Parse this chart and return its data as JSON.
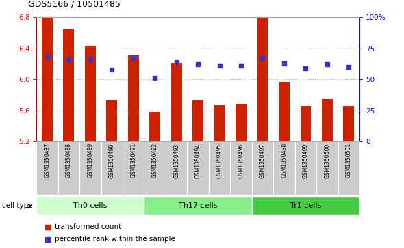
{
  "title": "GDS5166 / 10501485",
  "samples": [
    "GSM1350487",
    "GSM1350488",
    "GSM1350489",
    "GSM1350490",
    "GSM1350491",
    "GSM1350492",
    "GSM1350493",
    "GSM1350494",
    "GSM1350495",
    "GSM1350496",
    "GSM1350497",
    "GSM1350498",
    "GSM1350499",
    "GSM1350500",
    "GSM1350501"
  ],
  "bar_values": [
    6.8,
    6.65,
    6.43,
    5.73,
    6.31,
    5.58,
    6.21,
    5.73,
    5.67,
    5.68,
    6.8,
    5.97,
    5.66,
    5.75,
    5.66
  ],
  "dot_values_pct": [
    68,
    66,
    66,
    58,
    67,
    51,
    64,
    62,
    61,
    61,
    67,
    63,
    59,
    62,
    60
  ],
  "ylim": [
    5.2,
    6.8
  ],
  "y_ticks_left": [
    5.2,
    5.6,
    6.0,
    6.4,
    6.8
  ],
  "y_ticks_right_pct": [
    0,
    25,
    50,
    75,
    100
  ],
  "bar_color": "#cc2200",
  "dot_color": "#3333cc",
  "cell_groups": [
    {
      "label": "Th0 cells",
      "start": 0,
      "end": 4,
      "color": "#ccffcc"
    },
    {
      "label": "Th17 cells",
      "start": 5,
      "end": 9,
      "color": "#88ee88"
    },
    {
      "label": "Tr1 cells",
      "start": 10,
      "end": 14,
      "color": "#44cc44"
    }
  ],
  "legend_bar_label": "transformed count",
  "legend_dot_label": "percentile rank within the sample",
  "cell_type_label": "cell type",
  "grid_color": "#aaaaaa",
  "background_color": "#ffffff",
  "tick_area_bg": "#cccccc"
}
